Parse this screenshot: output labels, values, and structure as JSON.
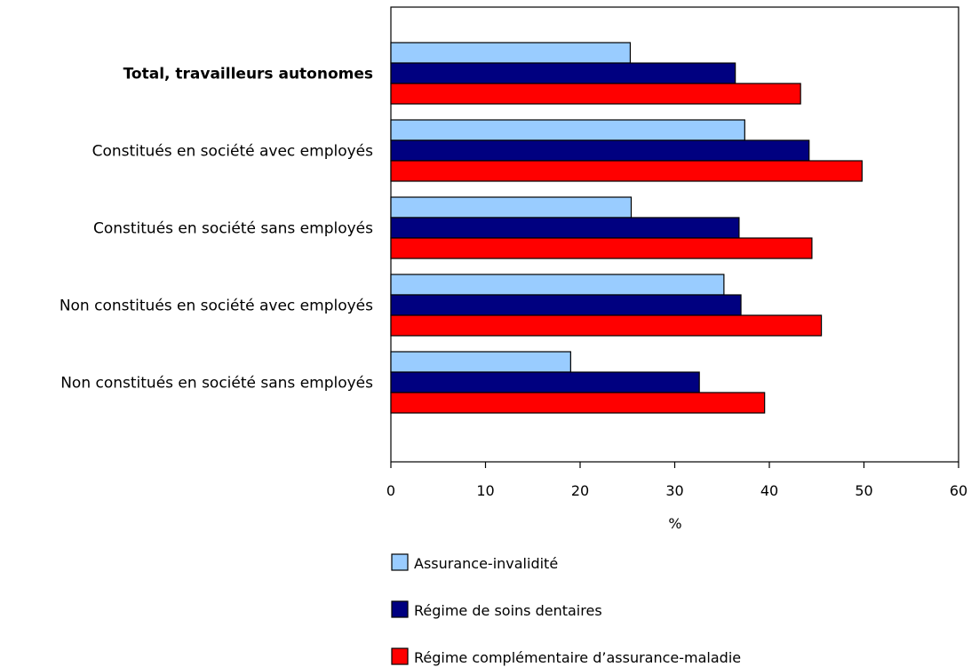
{
  "chart_data": {
    "type": "bar",
    "orientation": "horizontal",
    "title": "",
    "xlabel": "%",
    "ylabel": "",
    "xlim": [
      0,
      60
    ],
    "xticks": [
      "0",
      "10",
      "20",
      "30",
      "40",
      "50",
      "60"
    ],
    "grid": false,
    "legend_position": "bottom",
    "categories": [
      "Total, travailleurs autonomes",
      "Constitués en société avec employés",
      "Constitués en société sans employés",
      "Non constitués en société avec employés",
      "Non constitués en société sans employés"
    ],
    "bold_categories": [
      "Total, travailleurs autonomes"
    ],
    "series": [
      {
        "name": "Assurance-invalidité",
        "color": "#99ccff",
        "values": [
          25.3,
          37.4,
          25.4,
          35.2,
          19.0
        ]
      },
      {
        "name": "Régime de soins dentaires",
        "color": "#000080",
        "values": [
          36.4,
          44.2,
          36.8,
          37.0,
          32.6
        ]
      },
      {
        "name": "Régime complémentaire d’assurance-maladie",
        "color": "#ff0000",
        "values": [
          43.3,
          49.8,
          44.5,
          45.5,
          39.5
        ]
      }
    ]
  }
}
